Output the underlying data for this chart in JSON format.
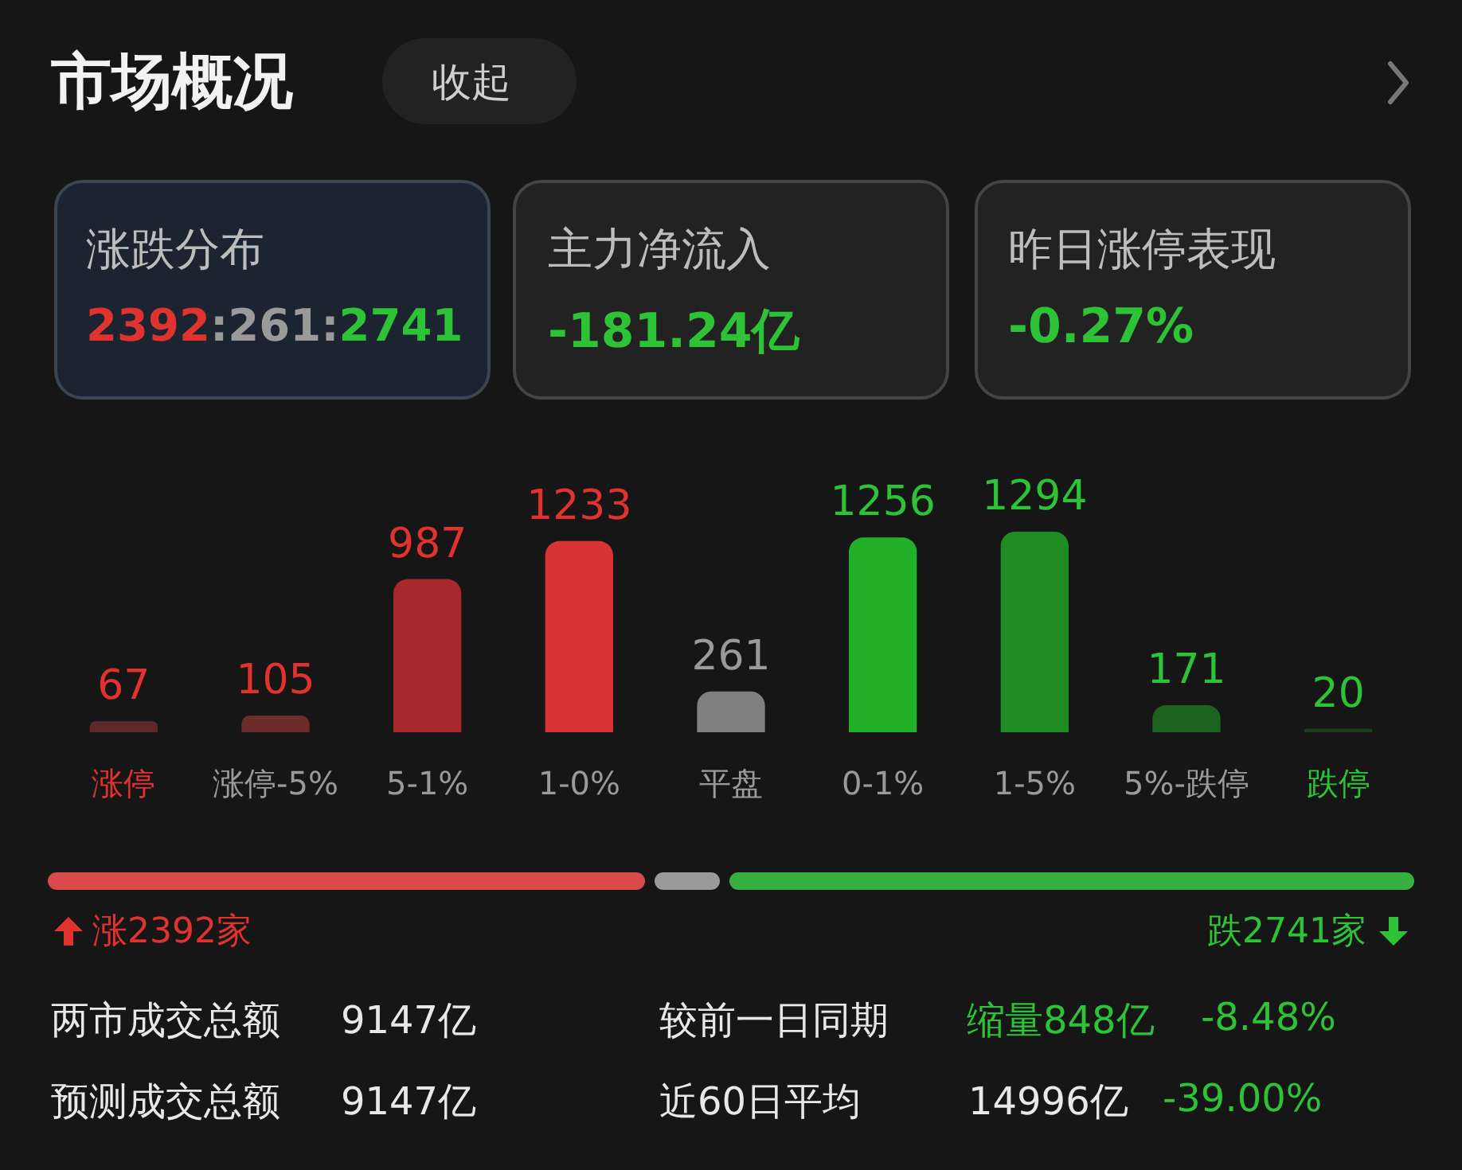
{
  "chart_data": [
    {
      "type": "bar",
      "title": "市场概况",
      "annotations": [
        "收起",
        "涨跌分布",
        "2392:261:2741",
        "主力净流入",
        "-181.24亿",
        "昨日涨停表现",
        "-0.27%"
      ],
      "categories": [
        "涨停",
        "涨停-5%",
        "5-1%",
        "1-0%",
        "平盘",
        "0-1%",
        "1-5%",
        "5%-跌停",
        "跌停"
      ],
      "values": [
        67,
        105,
        987,
        1233,
        261,
        1256,
        1294,
        171,
        20
      ],
      "colors": [
        "#5a2a2b",
        "#6e2b2c",
        "#a8292d",
        "#d83337",
        "#808080",
        "#22b02b",
        "#1e8c23",
        "#1c6320",
        "#1d3d20"
      ],
      "data_labels": true
    },
    {
      "type": "other",
      "annotations": [
        "涨2392家",
        "跌2741家",
        "两市成交总额",
        "9147亿",
        "较前一日同期",
        "缩量848亿",
        "-8.48%",
        "预测成交总额",
        "9147亿",
        "近60日平均",
        "14996亿",
        "-39.00%"
      ]
    }
  ]
}
